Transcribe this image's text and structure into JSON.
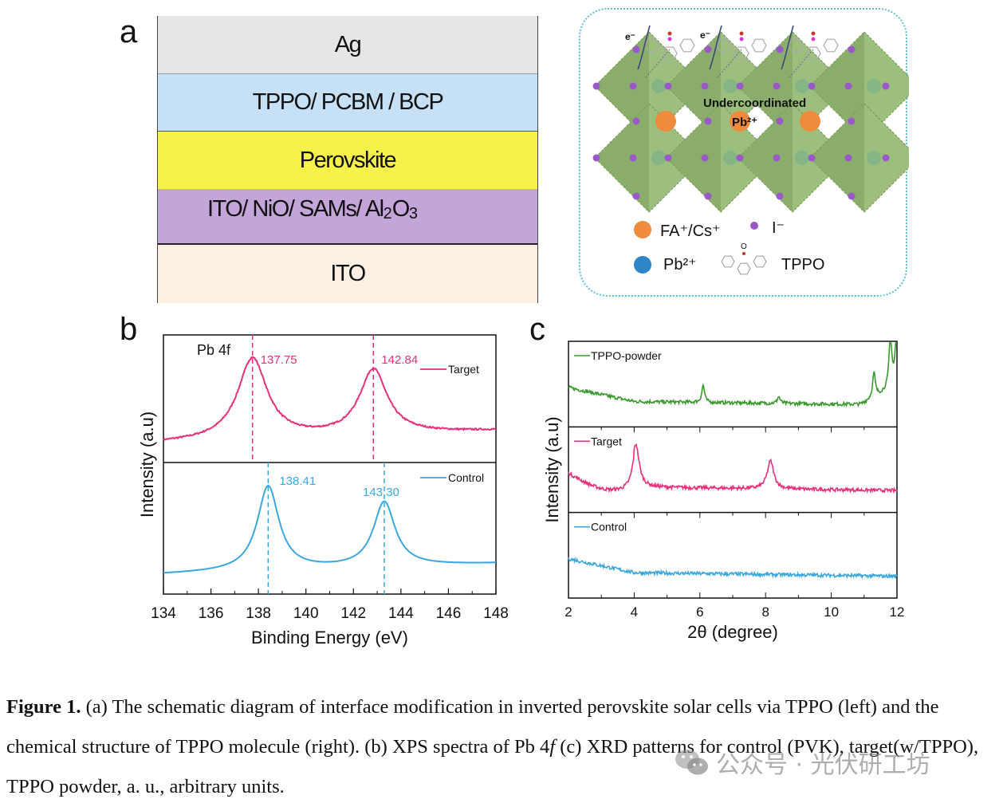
{
  "panel_a": {
    "letter": "a",
    "layers": [
      {
        "label": "Ag",
        "color": "#e6e6e6"
      },
      {
        "label": "TPPO/ PCBM / BCP",
        "color": "#c6e0f5"
      },
      {
        "label": "Perovskite",
        "color": "#f7f24a"
      },
      {
        "label_main": "ITO/ NiO/ SAMs/ Al",
        "sub1": "2",
        "mid": "O",
        "sub2": "3",
        "color": "#c4a5d9"
      },
      {
        "label": "ITO",
        "color": "#fcefe3"
      }
    ]
  },
  "schematic": {
    "electron_labels": [
      "e⁻",
      "e⁻"
    ],
    "annotation_line1": "Undercoordinated",
    "annotation_line2": "Pb²⁺",
    "legend": {
      "fa_cs": "FA⁺/Cs⁺",
      "iodide": "I⁻",
      "pb": "Pb²⁺",
      "tppo": "TPPO",
      "tppo_o": "O"
    },
    "colors": {
      "octahedron": "#9dbf7e",
      "iodide": "#9b59c8",
      "cation": "#f08a3c",
      "pb": "#2e86c9",
      "border": "#5bc0de"
    }
  },
  "chart_data": [
    {
      "id": "b",
      "letter": "b",
      "type": "line",
      "title": "",
      "annotation": "Pb 4f",
      "xlabel": "Binding Energy (eV)",
      "ylabel": "Intensity (a.u)",
      "xlim": [
        134,
        148
      ],
      "xticks": [
        134,
        136,
        138,
        140,
        142,
        144,
        146,
        148
      ],
      "series": [
        {
          "name": "Target",
          "color": "#e8317a",
          "panel": "top",
          "peaks": [
            137.75,
            142.84
          ],
          "peak_labels": [
            "137.75",
            "142.84"
          ],
          "peak_heights": [
            1.0,
            0.82
          ],
          "widths": [
            0.75,
            0.7
          ],
          "baseline_left": 0.08,
          "baseline_right": 0.2
        },
        {
          "name": "Control",
          "color": "#3aa8de",
          "panel": "bottom",
          "peaks": [
            138.41,
            143.3
          ],
          "peak_labels": [
            "138.41",
            "143.30"
          ],
          "peak_heights": [
            1.0,
            0.78
          ],
          "widths": [
            0.55,
            0.55
          ],
          "baseline_left": 0.08,
          "baseline_right": 0.18
        }
      ],
      "legend_placement": "top-right"
    },
    {
      "id": "c",
      "letter": "c",
      "type": "line",
      "xlabel": "2θ (degree)",
      "ylabel": "Intensity (a.u)",
      "xlim": [
        2,
        12
      ],
      "xticks": [
        2,
        4,
        6,
        8,
        10,
        12
      ],
      "series": [
        {
          "name": "TPPO-powder",
          "color": "#3a9a2e",
          "panel": "top",
          "peaks_x": [
            6.1,
            8.4,
            11.3,
            11.8,
            12.0
          ],
          "peaks_h": [
            0.25,
            0.1,
            0.35,
            0.75,
            1.0
          ]
        },
        {
          "name": "Target",
          "color": "#e8317a",
          "panel": "middle",
          "peaks_x": [
            4.05,
            8.15
          ],
          "peaks_h": [
            0.62,
            0.4
          ]
        },
        {
          "name": "Control",
          "color": "#3aa8de",
          "panel": "bottom",
          "peaks_x": [],
          "peaks_h": []
        }
      ],
      "legend_placement": "top-left"
    }
  ],
  "caption": {
    "bold": "Figure 1.",
    "text": " (a) The schematic diagram of interface modification in inverted perovskite solar cells via TPPO (left) and the chemical structure of TPPO molecule (right). (b) XPS spectra of Pb 4",
    "italic": "f",
    "text2": " (c) XRD patterns for control (PVK), target(w/TPPO), TPPO powder, a. u., arbitrary units."
  },
  "watermark": {
    "text": "公众号 · 光伏研工坊",
    "icon": "wechat-icon"
  }
}
